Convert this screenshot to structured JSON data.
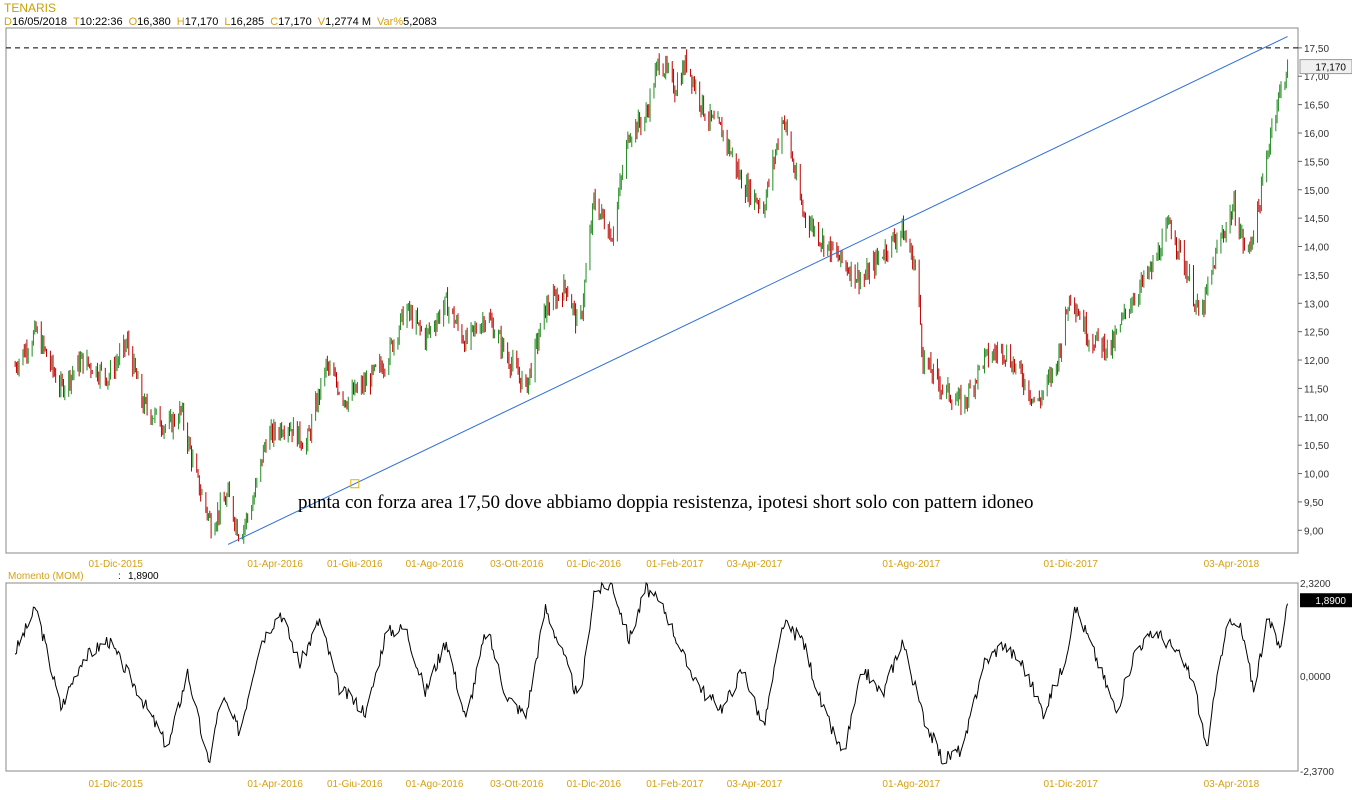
{
  "header": {
    "symbol": "TENARIS",
    "fields": [
      {
        "label": "D",
        "value": "16/05/2018"
      },
      {
        "label": "T",
        "value": "10:22:36"
      },
      {
        "label": "O",
        "value": "16,380"
      },
      {
        "label": "H",
        "value": "17,170"
      },
      {
        "label": "L",
        "value": "16,285"
      },
      {
        "label": "C",
        "value": "17,170"
      },
      {
        "label": "V",
        "value": "1,2774 M"
      },
      {
        "label": "Var%",
        "value": "5,2083"
      }
    ]
  },
  "colors": {
    "up_bar": "#228b22",
    "down_bar": "#c00000",
    "trendline": "#2f6fd6",
    "resistance": "#000000",
    "axis_text": "#333333",
    "date_text": "#d4a017",
    "momentum_line": "#000000"
  },
  "chart_data": [
    {
      "type": "ohlc",
      "title": "TENARIS",
      "x_labels": [
        "01-Dic-2015",
        "01-Apr-2016",
        "01-Giu-2016",
        "01-Ago-2016",
        "03-Ott-2016",
        "01-Dic-2016",
        "01-Feb-2017",
        "03-Apr-2017",
        "01-Ago-2017",
        "01-Dic-2017",
        "03-Apr-2018"
      ],
      "ylim": [
        8.6,
        17.85
      ],
      "y_ticks": [
        "9,00",
        "9,50",
        "10,00",
        "10,50",
        "11,00",
        "11,50",
        "12,00",
        "12,50",
        "13,00",
        "13,50",
        "14,00",
        "14,50",
        "15,00",
        "15,50",
        "16,00",
        "16,50",
        "17,00",
        "17,50"
      ],
      "last_price_label": "17,170",
      "last_price": 17.17,
      "resistance": {
        "value": 17.5,
        "style": "dashed"
      },
      "trendline": {
        "from": {
          "x": "2016-02-25",
          "y": 8.75
        },
        "to": {
          "x": "2018-05-16",
          "y": 17.7
        }
      },
      "annotation": "punta con forza area 17,50 dove abbiamo doppia resistenza, ipotesi short solo con pattern idoneo",
      "price_path": [
        [
          "2015-09-15",
          11.9
        ],
        [
          "2015-10-01",
          12.5
        ],
        [
          "2015-10-20",
          11.5
        ],
        [
          "2015-11-05",
          12.0
        ],
        [
          "2015-11-25",
          11.7
        ],
        [
          "2015-12-10",
          12.3
        ],
        [
          "2015-12-22",
          11.2
        ],
        [
          "2016-01-10",
          10.8
        ],
        [
          "2016-01-20",
          11.1
        ],
        [
          "2016-02-01",
          9.9
        ],
        [
          "2016-02-12",
          9.1
        ],
        [
          "2016-02-25",
          9.6
        ],
        [
          "2016-03-05",
          8.9
        ],
        [
          "2016-03-15",
          9.5
        ],
        [
          "2016-03-25",
          10.6
        ],
        [
          "2016-04-10",
          10.9
        ],
        [
          "2016-04-25",
          10.5
        ],
        [
          "2016-05-10",
          11.9
        ],
        [
          "2016-05-25",
          11.3
        ],
        [
          "2016-06-10",
          11.6
        ],
        [
          "2016-06-25",
          12.0
        ],
        [
          "2016-07-10",
          12.9
        ],
        [
          "2016-07-25",
          12.4
        ],
        [
          "2016-08-10",
          13.0
        ],
        [
          "2016-08-25",
          12.3
        ],
        [
          "2016-09-10",
          12.8
        ],
        [
          "2016-09-25",
          12.1
        ],
        [
          "2016-10-10",
          11.5
        ],
        [
          "2016-10-25",
          12.9
        ],
        [
          "2016-11-10",
          13.3
        ],
        [
          "2016-11-20",
          12.5
        ],
        [
          "2016-12-01",
          14.8
        ],
        [
          "2016-12-15",
          14.2
        ],
        [
          "2016-12-28",
          16.0
        ],
        [
          "2017-01-10",
          16.3
        ],
        [
          "2017-01-20",
          17.3
        ],
        [
          "2017-02-01",
          16.8
        ],
        [
          "2017-02-10",
          17.25
        ],
        [
          "2017-02-25",
          16.3
        ],
        [
          "2017-03-10",
          16.0
        ],
        [
          "2017-03-25",
          15.1
        ],
        [
          "2017-04-10",
          14.7
        ],
        [
          "2017-04-25",
          16.3
        ],
        [
          "2017-05-10",
          14.6
        ],
        [
          "2017-05-25",
          14.1
        ],
        [
          "2017-06-10",
          13.7
        ],
        [
          "2017-06-25",
          13.4
        ],
        [
          "2017-07-10",
          13.9
        ],
        [
          "2017-07-25",
          14.3
        ],
        [
          "2017-08-05",
          13.6
        ],
        [
          "2017-08-10",
          12.0
        ],
        [
          "2017-08-25",
          11.5
        ],
        [
          "2017-09-10",
          11.2
        ],
        [
          "2017-09-25",
          12.0
        ],
        [
          "2017-10-10",
          12.2
        ],
        [
          "2017-10-25",
          11.7
        ],
        [
          "2017-11-05",
          11.2
        ],
        [
          "2017-11-20",
          11.9
        ],
        [
          "2017-12-01",
          13.2
        ],
        [
          "2017-12-15",
          12.4
        ],
        [
          "2018-01-01",
          12.2
        ],
        [
          "2018-01-15",
          13.0
        ],
        [
          "2018-02-01",
          13.6
        ],
        [
          "2018-02-15",
          14.4
        ],
        [
          "2018-03-01",
          13.5
        ],
        [
          "2018-03-10",
          12.7
        ],
        [
          "2018-03-25",
          14.1
        ],
        [
          "2018-04-05",
          14.7
        ],
        [
          "2018-04-15",
          13.8
        ],
        [
          "2018-04-25",
          14.8
        ],
        [
          "2018-05-05",
          16.3
        ],
        [
          "2018-05-16",
          17.17
        ]
      ]
    },
    {
      "type": "line",
      "title": "Momento (MOM)",
      "current_value_label": "1,8900",
      "current_value": 1.89,
      "ylim": [
        -2.37,
        2.32
      ],
      "y_tick_labels": [
        "2,3200",
        "0,0000",
        "-2,3700"
      ],
      "x_labels": [
        "01-Dic-2015",
        "01-Apr-2016",
        "01-Giu-2016",
        "01-Ago-2016",
        "03-Ott-2016",
        "01-Dic-2016",
        "01-Feb-2017",
        "03-Apr-2017",
        "01-Ago-2017",
        "01-Dic-2017",
        "03-Apr-2018"
      ],
      "values_path": [
        [
          "2015-09-15",
          0.6
        ],
        [
          "2015-10-01",
          1.7
        ],
        [
          "2015-10-20",
          -0.8
        ],
        [
          "2015-11-05",
          0.4
        ],
        [
          "2015-11-25",
          0.9
        ],
        [
          "2015-12-15",
          -0.2
        ],
        [
          "2016-01-10",
          -1.8
        ],
        [
          "2016-01-25",
          0.1
        ],
        [
          "2016-02-10",
          -2.2
        ],
        [
          "2016-02-20",
          -0.5
        ],
        [
          "2016-03-05",
          -1.4
        ],
        [
          "2016-03-20",
          0.8
        ],
        [
          "2016-04-05",
          1.6
        ],
        [
          "2016-04-20",
          0.3
        ],
        [
          "2016-05-05",
          1.4
        ],
        [
          "2016-05-20",
          -0.3
        ],
        [
          "2016-06-10",
          -0.9
        ],
        [
          "2016-06-25",
          1.1
        ],
        [
          "2016-07-10",
          1.2
        ],
        [
          "2016-07-25",
          -0.4
        ],
        [
          "2016-08-10",
          0.9
        ],
        [
          "2016-08-25",
          -1.1
        ],
        [
          "2016-09-10",
          1.2
        ],
        [
          "2016-09-25",
          -0.5
        ],
        [
          "2016-10-10",
          -1.0
        ],
        [
          "2016-10-25",
          1.7
        ],
        [
          "2016-11-10",
          0.3
        ],
        [
          "2016-11-20",
          -0.7
        ],
        [
          "2016-12-01",
          2.1
        ],
        [
          "2016-12-15",
          2.3
        ],
        [
          "2016-12-28",
          0.9
        ],
        [
          "2017-01-10",
          2.2
        ],
        [
          "2017-01-25",
          1.6
        ],
        [
          "2017-02-10",
          0.3
        ],
        [
          "2017-02-25",
          -0.5
        ],
        [
          "2017-03-10",
          -0.8
        ],
        [
          "2017-03-25",
          0.2
        ],
        [
          "2017-04-10",
          -1.3
        ],
        [
          "2017-04-25",
          1.3
        ],
        [
          "2017-05-10",
          0.9
        ],
        [
          "2017-05-25",
          -0.8
        ],
        [
          "2017-06-10",
          -2.0
        ],
        [
          "2017-06-25",
          0.2
        ],
        [
          "2017-07-10",
          -0.5
        ],
        [
          "2017-07-25",
          0.9
        ],
        [
          "2017-08-10",
          -1.0
        ],
        [
          "2017-08-25",
          -2.1
        ],
        [
          "2017-09-10",
          -1.8
        ],
        [
          "2017-09-25",
          0.3
        ],
        [
          "2017-10-10",
          0.8
        ],
        [
          "2017-10-25",
          0.3
        ],
        [
          "2017-11-10",
          -0.9
        ],
        [
          "2017-11-25",
          0.2
        ],
        [
          "2017-12-05",
          1.7
        ],
        [
          "2017-12-20",
          0.5
        ],
        [
          "2018-01-05",
          -0.9
        ],
        [
          "2018-01-20",
          0.7
        ],
        [
          "2018-02-05",
          1.1
        ],
        [
          "2018-02-20",
          0.6
        ],
        [
          "2018-03-05",
          -0.1
        ],
        [
          "2018-03-15",
          -1.8
        ],
        [
          "2018-03-30",
          1.3
        ],
        [
          "2018-04-10",
          1.2
        ],
        [
          "2018-04-20",
          -0.3
        ],
        [
          "2018-05-01",
          1.4
        ],
        [
          "2018-05-10",
          0.7
        ],
        [
          "2018-05-16",
          1.89
        ]
      ]
    }
  ]
}
